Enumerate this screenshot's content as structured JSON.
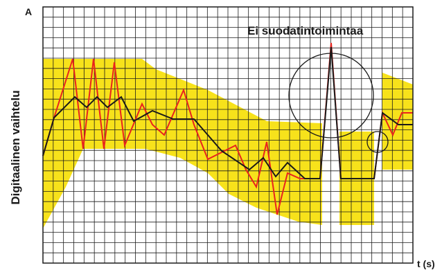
{
  "labels": {
    "corner": "A",
    "annotation": "Ei suodatintoimintaa",
    "y_axis": "Digitaalinen vaihtelu",
    "x_axis": "t (s)"
  }
}
